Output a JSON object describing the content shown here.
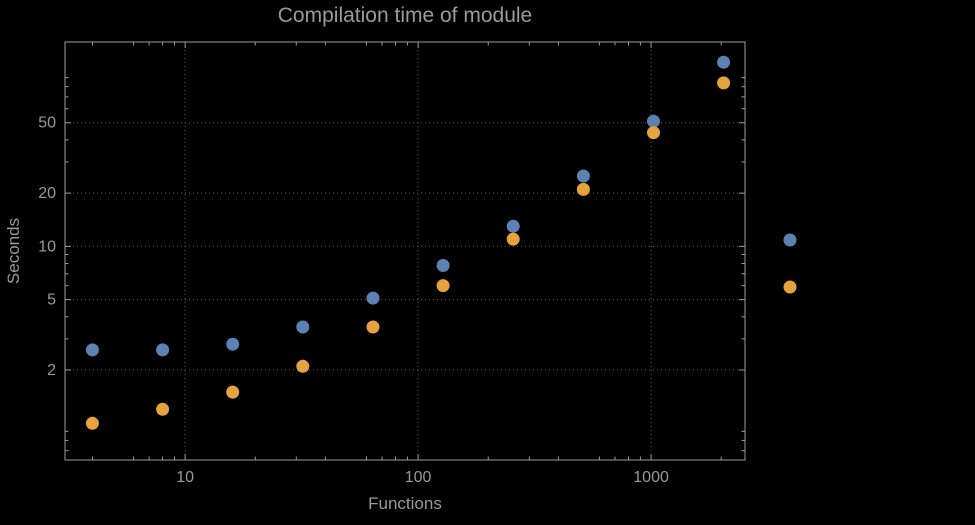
{
  "chart_data": {
    "type": "scatter",
    "title": "Compilation time of module",
    "xlabel": "Functions",
    "ylabel": "Seconds",
    "xscale": "log",
    "yscale": "log",
    "xlim": [
      3.05,
      2530
    ],
    "ylim": [
      0.62,
      143
    ],
    "xticks": [
      10,
      100,
      1000
    ],
    "yticks": [
      2,
      5,
      10,
      20,
      50
    ],
    "grid": "dotted",
    "x": [
      4,
      8,
      16,
      32,
      64,
      128,
      256,
      512,
      1024,
      2048
    ],
    "series": [
      {
        "name": "series-1",
        "color": "#5e81b5",
        "values": [
          2.6,
          2.6,
          2.8,
          3.5,
          5.1,
          7.8,
          13,
          25,
          51,
          110
        ]
      },
      {
        "name": "series-2",
        "color": "#e6a23c",
        "values": [
          1.0,
          1.2,
          1.5,
          2.1,
          3.5,
          6.0,
          11,
          21,
          44,
          84
        ]
      }
    ],
    "legend": {
      "position": "outside-right",
      "entries": [
        {
          "marker_color": "#5e81b5",
          "label": ""
        },
        {
          "marker_color": "#e6a23c",
          "label": ""
        }
      ]
    }
  },
  "style": {
    "background": "#000000",
    "text_color": "#9a9a9a",
    "grid_color": "#5f5f5f",
    "frame_color": "#9c9c9c"
  }
}
